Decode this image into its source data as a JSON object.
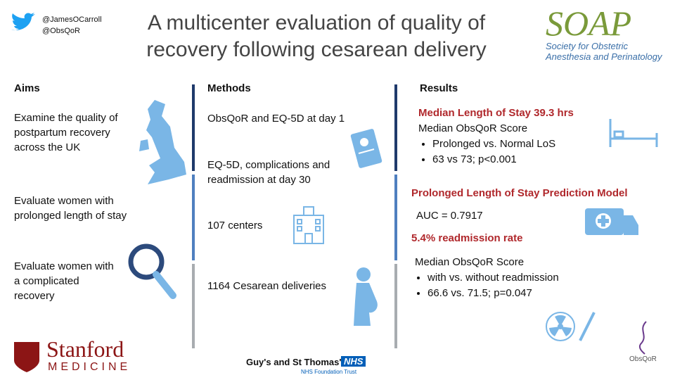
{
  "header": {
    "handles": [
      "@JamesOCarroll",
      "@ObsQoR"
    ],
    "title": "A multicenter evaluation of quality of recovery following cesarean delivery",
    "logo": {
      "name": "SOAP",
      "lines": [
        "Society for Obstetric",
        "Anesthesia and Perinatology"
      ]
    }
  },
  "aims": {
    "heading": "Aims",
    "items": [
      "Examine the quality of postpartum recovery across the UK",
      "Evaluate women with prolonged length of stay",
      "Evaluate women with a complicated recovery"
    ]
  },
  "methods": {
    "heading": "Methods",
    "items": [
      "ObsQoR and EQ-5D at day 1",
      "EQ-5D, complications and readmission at day 30",
      "107 centers",
      "1164 Cesarean deliveries"
    ]
  },
  "results": {
    "heading": "Results",
    "blocks": [
      {
        "highlight": "Median Length of Stay 39.3 hrs",
        "text": "Median ObsQoR Score",
        "bullets": [
          "Prolonged vs. Normal LoS",
          "63 vs 73; p<0.001"
        ]
      },
      {
        "highlight": "Prolonged Length of Stay Prediction Model",
        "text": "AUC = 0.7917"
      },
      {
        "highlight": "5.4% readmission rate",
        "text": "Median ObsQoR Score",
        "bullets": [
          "with vs. without readmission",
          "66.6 vs. 71.5; p=0.047"
        ]
      }
    ]
  },
  "footer": {
    "stanford": [
      "Stanford",
      "MEDICINE"
    ],
    "guys": {
      "name": "Guy's and St Thomas'",
      "badge": "NHS",
      "trust": "NHS Foundation Trust"
    },
    "obsqor": "ObsQoR"
  }
}
